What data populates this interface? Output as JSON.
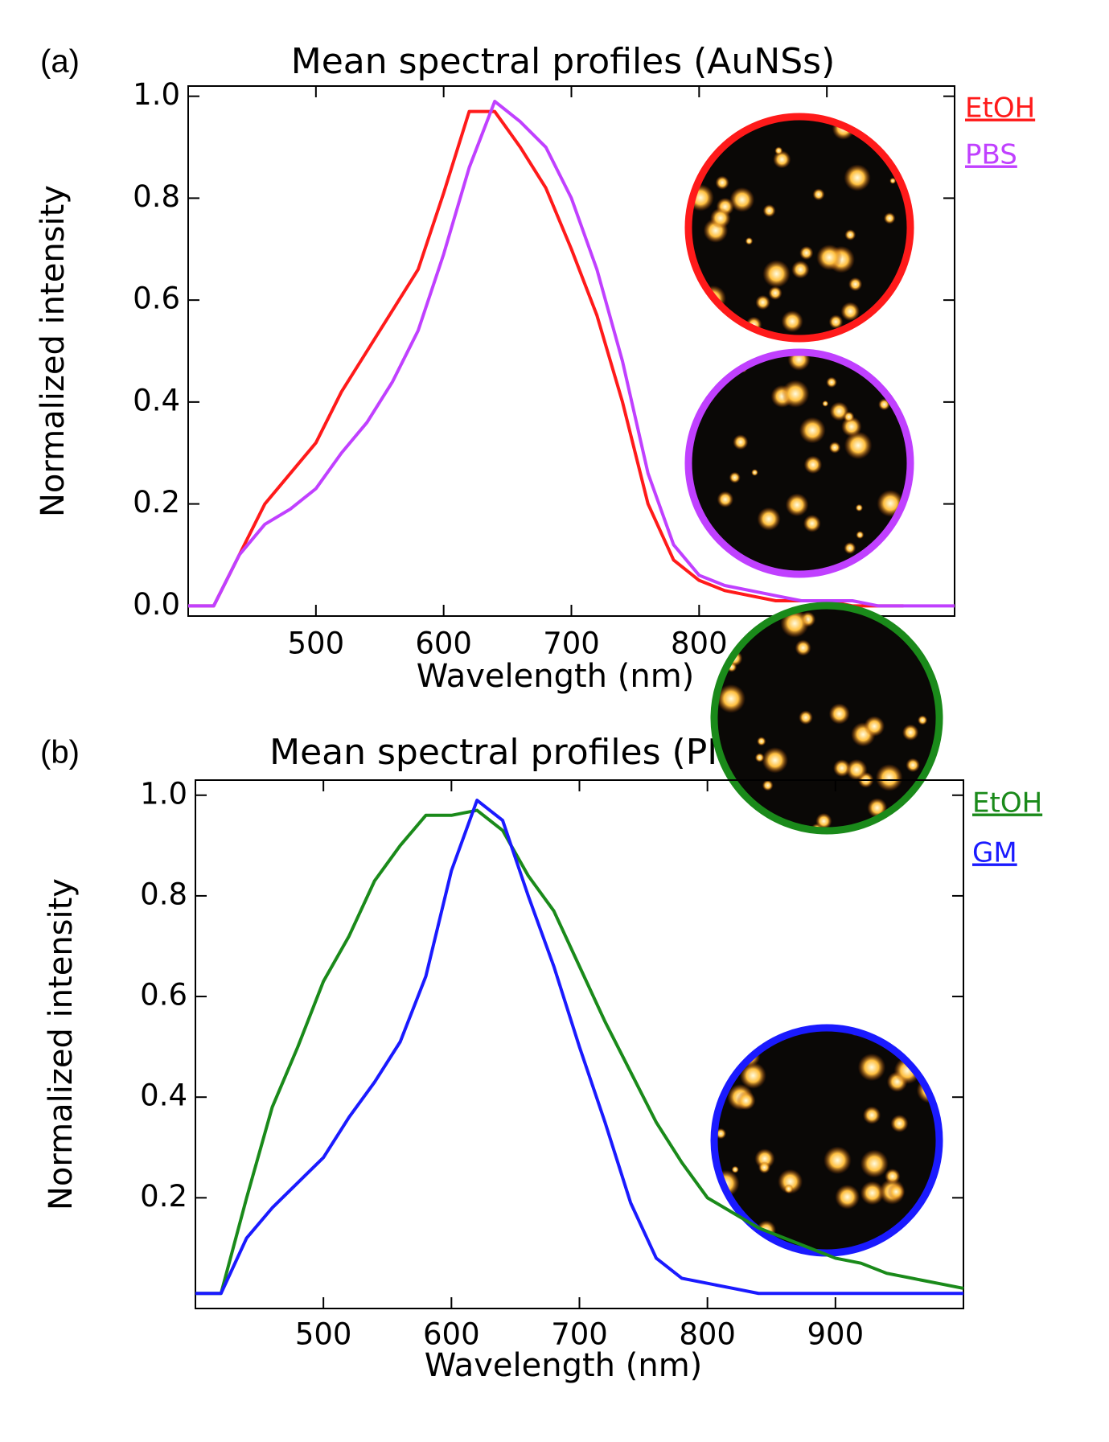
{
  "chart_data": [
    {
      "type": "line",
      "panel_label": "(a)",
      "title": "Mean spectral profiles (AuNSs)",
      "xlabel": "Wavelength (nm)",
      "ylabel": "Normalized intensity",
      "x": [
        400,
        420,
        440,
        460,
        480,
        500,
        520,
        540,
        560,
        580,
        600,
        620,
        640,
        660,
        680,
        700,
        720,
        740,
        760,
        780,
        800,
        820,
        840,
        860,
        880,
        900,
        920,
        940,
        960,
        980,
        1000
      ],
      "series": [
        {
          "name": "EtOH",
          "color": "#ff1a1a",
          "values": [
            0,
            0,
            0.1,
            0.2,
            0.26,
            0.32,
            0.42,
            0.5,
            0.58,
            0.66,
            0.81,
            0.97,
            0.97,
            0.9,
            0.82,
            0.7,
            0.57,
            0.4,
            0.2,
            0.09,
            0.05,
            0.03,
            0.02,
            0.01,
            0.01,
            0.01,
            0,
            0,
            0,
            null,
            null
          ]
        },
        {
          "name": "PBS",
          "color": "#c040ff",
          "values": [
            0,
            0,
            0.1,
            0.16,
            0.19,
            0.23,
            0.3,
            0.36,
            0.44,
            0.54,
            0.69,
            0.86,
            0.99,
            0.95,
            0.9,
            0.8,
            0.66,
            0.48,
            0.26,
            0.12,
            0.06,
            0.04,
            0.03,
            0.02,
            0.01,
            0.01,
            0.01,
            0,
            0,
            0,
            0
          ]
        }
      ],
      "xlim": [
        400,
        1000
      ],
      "ylim": [
        -0.02,
        1.02
      ],
      "xticks": [
        500,
        600,
        700,
        800,
        900
      ],
      "yticks": [
        {
          "value": 0,
          "label": "0.0"
        },
        0.2,
        0.4,
        0.6,
        0.8,
        {
          "value": 1,
          "label": "1.0"
        }
      ],
      "legend": "outside-upper-right"
    },
    {
      "type": "line",
      "panel_label": "(b)",
      "title": "Mean spectral profiles (PM-AuNPs)",
      "xlabel": "Wavelength (nm)",
      "ylabel": "Normalized intensity",
      "x": [
        400,
        420,
        440,
        460,
        480,
        500,
        520,
        540,
        560,
        580,
        600,
        620,
        640,
        660,
        680,
        700,
        720,
        740,
        760,
        780,
        800,
        820,
        840,
        860,
        880,
        900,
        920,
        940,
        960,
        980,
        1000
      ],
      "series": [
        {
          "name": "EtOH",
          "color": "#1a8a1a",
          "values": [
            0.01,
            0.01,
            0.2,
            0.38,
            0.5,
            0.63,
            0.72,
            0.83,
            0.9,
            0.96,
            0.96,
            0.97,
            0.93,
            0.84,
            0.77,
            0.66,
            0.55,
            0.45,
            0.35,
            0.27,
            0.2,
            0.17,
            0.14,
            0.12,
            0.1,
            0.08,
            0.07,
            0.05,
            0.04,
            0.03,
            0.02
          ]
        },
        {
          "name": "GM",
          "color": "#1a1aff",
          "values": [
            0.01,
            0.01,
            0.12,
            0.18,
            0.23,
            0.28,
            0.36,
            0.43,
            0.51,
            0.64,
            0.85,
            0.99,
            0.95,
            0.8,
            0.66,
            0.5,
            0.35,
            0.19,
            0.08,
            0.04,
            0.03,
            0.02,
            0.01,
            0.01,
            0.01,
            0.01,
            0.01,
            0.01,
            0.01,
            0.01,
            0.01
          ]
        }
      ],
      "xlim": [
        400,
        1000
      ],
      "ylim": [
        -0.02,
        1.03
      ],
      "xticks": [
        500,
        600,
        700,
        800,
        900
      ],
      "yticks": [
        0.2,
        0.4,
        0.6,
        0.8,
        {
          "value": 1,
          "label": "1.0"
        }
      ],
      "legend": "outside-upper-right"
    }
  ]
}
